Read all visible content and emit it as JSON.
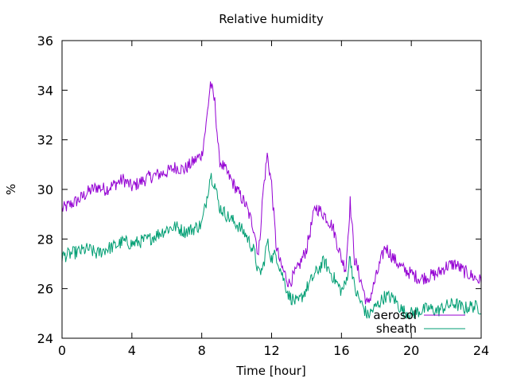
{
  "chart_data": {
    "type": "line",
    "title": "Relative humidity",
    "xlabel": "Time [hour]",
    "ylabel": "%",
    "xlim": [
      0,
      24
    ],
    "ylim": [
      24,
      36
    ],
    "xticks": [
      0,
      4,
      8,
      12,
      16,
      20,
      24
    ],
    "yticks": [
      24,
      26,
      28,
      30,
      32,
      34,
      36
    ],
    "grid": false,
    "legend_position": "bottom-right",
    "series": [
      {
        "name": "aerosol",
        "color": "#9400d3",
        "x": [
          0,
          0.5,
          1,
          1.5,
          2,
          2.5,
          3,
          3.5,
          4,
          4.5,
          5,
          5.5,
          6,
          6.5,
          7,
          7.5,
          8,
          8.25,
          8.5,
          8.75,
          9,
          9.5,
          10,
          10.5,
          11,
          11.25,
          11.5,
          11.75,
          12,
          12.25,
          12.5,
          13,
          13.5,
          14,
          14.5,
          15,
          15.5,
          16,
          16.25,
          16.5,
          16.75,
          17,
          17.5,
          18,
          18.5,
          19,
          19.5,
          20,
          20.5,
          21,
          21.5,
          22,
          22.5,
          23,
          23.5,
          24
        ],
        "values": [
          29.2,
          29.4,
          29.6,
          29.9,
          30.1,
          30.0,
          30.2,
          30.4,
          30.1,
          30.3,
          30.5,
          30.6,
          30.7,
          30.9,
          30.8,
          31.1,
          31.4,
          32.6,
          34.3,
          33.5,
          31.2,
          30.6,
          30.0,
          29.4,
          28.4,
          27.3,
          29.8,
          31.4,
          30.2,
          27.8,
          27.0,
          26.2,
          26.8,
          27.6,
          29.3,
          29.0,
          28.5,
          27.2,
          26.8,
          29.5,
          27.2,
          26.6,
          25.3,
          26.5,
          27.7,
          27.2,
          26.8,
          26.6,
          26.4,
          26.5,
          26.6,
          26.9,
          27.0,
          26.7,
          26.5,
          26.3
        ]
      },
      {
        "name": "sheath",
        "color": "#009e73",
        "x": [
          0,
          0.5,
          1,
          1.5,
          2,
          2.5,
          3,
          3.5,
          4,
          4.5,
          5,
          5.5,
          6,
          6.5,
          7,
          7.5,
          8,
          8.25,
          8.5,
          8.75,
          9,
          9.5,
          10,
          10.5,
          11,
          11.25,
          11.5,
          11.75,
          12,
          12.25,
          12.5,
          13,
          13.5,
          14,
          14.5,
          15,
          15.5,
          16,
          16.25,
          16.5,
          16.75,
          17,
          17.5,
          18,
          18.5,
          19,
          19.5,
          20,
          20.5,
          21,
          21.5,
          22,
          22.5,
          23,
          23.5,
          24
        ],
        "values": [
          27.3,
          27.4,
          27.5,
          27.6,
          27.4,
          27.6,
          27.7,
          27.9,
          27.8,
          27.9,
          28.0,
          28.2,
          28.4,
          28.5,
          28.3,
          28.4,
          28.6,
          29.5,
          30.6,
          30.2,
          29.3,
          28.9,
          28.6,
          28.2,
          27.5,
          26.6,
          26.8,
          27.9,
          27.2,
          27.4,
          26.8,
          25.7,
          25.4,
          26.0,
          26.6,
          27.1,
          26.5,
          25.9,
          26.2,
          27.3,
          26.0,
          25.6,
          24.9,
          25.3,
          25.7,
          25.6,
          25.1,
          25.0,
          25.1,
          25.2,
          25.1,
          25.3,
          25.4,
          25.2,
          25.3,
          25.2
        ]
      }
    ]
  }
}
